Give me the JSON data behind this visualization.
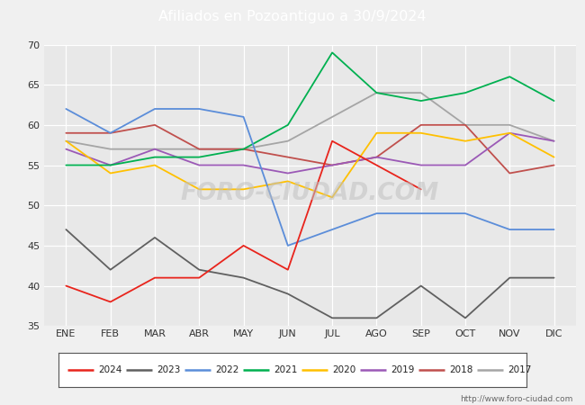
{
  "title": "Afiliados en Pozoantiguo a 30/9/2024",
  "title_bg_color": "#5b8dd9",
  "title_text_color": "white",
  "ylim": [
    35,
    70
  ],
  "yticks": [
    35,
    40,
    45,
    50,
    55,
    60,
    65,
    70
  ],
  "months": [
    "ENE",
    "FEB",
    "MAR",
    "ABR",
    "MAY",
    "JUN",
    "JUL",
    "AGO",
    "SEP",
    "OCT",
    "NOV",
    "DIC"
  ],
  "series": {
    "2024": {
      "color": "#e8241c",
      "data": [
        40,
        38,
        41,
        41,
        45,
        42,
        58,
        null,
        52,
        null,
        null,
        null
      ]
    },
    "2023": {
      "color": "#606060",
      "data": [
        47,
        42,
        46,
        42,
        41,
        39,
        36,
        36,
        40,
        36,
        41,
        41
      ]
    },
    "2022": {
      "color": "#5b8dd9",
      "data": [
        62,
        59,
        62,
        62,
        61,
        45,
        47,
        49,
        49,
        49,
        47,
        47
      ]
    },
    "2021": {
      "color": "#00b050",
      "data": [
        55,
        55,
        56,
        56,
        57,
        60,
        69,
        64,
        63,
        64,
        66,
        63
      ]
    },
    "2020": {
      "color": "#ffc000",
      "data": [
        58,
        54,
        55,
        52,
        52,
        53,
        51,
        59,
        59,
        58,
        59,
        56
      ]
    },
    "2019": {
      "color": "#9b59b6",
      "data": [
        57,
        55,
        57,
        55,
        55,
        54,
        55,
        56,
        55,
        55,
        59,
        58
      ]
    },
    "2018": {
      "color": "#c0504d",
      "data": [
        59,
        59,
        60,
        57,
        57,
        56,
        55,
        56,
        60,
        60,
        54,
        55
      ]
    },
    "2017": {
      "color": "#a5a5a5",
      "data": [
        58,
        57,
        57,
        57,
        57,
        58,
        61,
        64,
        64,
        60,
        60,
        58
      ]
    }
  },
  "fig_bg_color": "#f0f0f0",
  "plot_bg_color": "#e8e8e8",
  "grid_color": "white",
  "footer_url": "http://www.foro-ciudad.com",
  "legend_years": [
    "2024",
    "2023",
    "2022",
    "2021",
    "2020",
    "2019",
    "2018",
    "2017"
  ],
  "watermark_text": "FORO-CIUDAD.COM",
  "watermark_color": "#c8c8c8"
}
